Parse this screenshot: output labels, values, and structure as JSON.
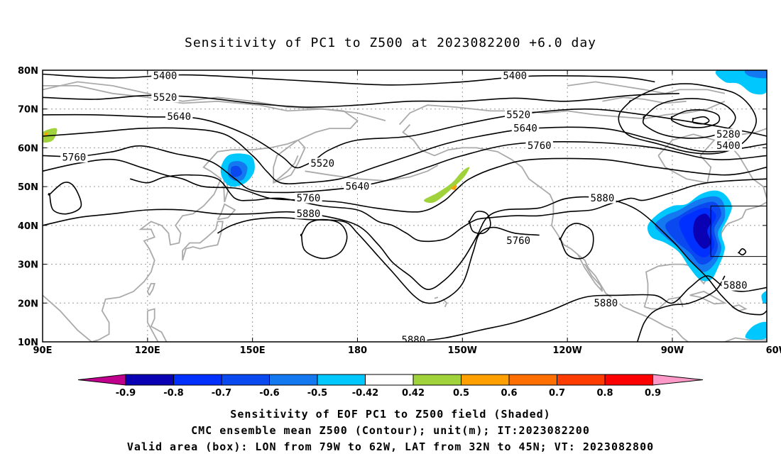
{
  "title": "Sensitivity of PC1 to Z500 at 2023082200 +6.0 day",
  "captions": [
    "Sensitivity of EOF PC1 to Z500 field (Shaded)",
    "CMC ensemble mean Z500 (Contour); unit(m); IT:2023082200",
    "Valid area (box): LON from 79W to 62W, LAT from 32N to 45N; VT: 2023082800"
  ],
  "map": {
    "lat_ticks": [
      "80N",
      "70N",
      "60N",
      "50N",
      "40N",
      "30N",
      "20N",
      "10N"
    ],
    "lon_ticks": [
      "90E",
      "120E",
      "150E",
      "180",
      "150W",
      "120W",
      "90W",
      "60W"
    ],
    "contour_labels": [
      {
        "text": "5400",
        "lon": 125,
        "lat": 78.5
      },
      {
        "text": "5400",
        "lon": 225,
        "lat": 78.5
      },
      {
        "text": "5520",
        "lon": 125,
        "lat": 73
      },
      {
        "text": "5640",
        "lon": 129,
        "lat": 68
      },
      {
        "text": "5760",
        "lon": 99,
        "lat": 57.5
      },
      {
        "text": "5520",
        "lon": 170,
        "lat": 56
      },
      {
        "text": "5520",
        "lon": 226,
        "lat": 68.5
      },
      {
        "text": "5640",
        "lon": 228,
        "lat": 65
      },
      {
        "text": "5760",
        "lon": 232,
        "lat": 60.5
      },
      {
        "text": "5640",
        "lon": 180,
        "lat": 50
      },
      {
        "text": "5760",
        "lon": 166,
        "lat": 47
      },
      {
        "text": "5880",
        "lon": 166,
        "lat": 43
      },
      {
        "text": "5760",
        "lon": 226,
        "lat": 36
      },
      {
        "text": "5880",
        "lon": 250,
        "lat": 47
      },
      {
        "text": "5880",
        "lon": 251,
        "lat": 20
      },
      {
        "text": "5880",
        "lon": 196,
        "lat": 10.5
      },
      {
        "text": "5280",
        "lon": 286,
        "lat": 63.5
      },
      {
        "text": "5400",
        "lon": 286,
        "lat": 60.5
      },
      {
        "text": "5880",
        "lon": 288,
        "lat": 24.5
      }
    ],
    "valid_box": {
      "lon_min": -79,
      "lon_max": -62,
      "lat_min": 32,
      "lat_max": 45
    }
  },
  "colorbar": {
    "labels": [
      "-0.9",
      "-0.8",
      "-0.7",
      "-0.6",
      "-0.5",
      "-0.42",
      "0.42",
      "0.5",
      "0.6",
      "0.7",
      "0.8",
      "0.9"
    ],
    "colors": [
      "#0a00b4",
      "#0030ff",
      "#0a48f0",
      "#1478f0",
      "#00c8ff",
      "#ffffff",
      "#a0d23c",
      "#ffa000",
      "#ff6e00",
      "#ff3c00",
      "#ff0000"
    ],
    "low_end_color": "#c0008c",
    "high_end_color": "#ff9ac8"
  }
}
